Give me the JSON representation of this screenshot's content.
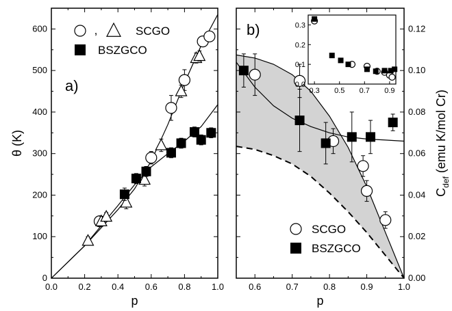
{
  "chart_data": [
    {
      "panel": "a)",
      "type": "scatter",
      "xlabel": "p",
      "ylabel": "θ (K)",
      "xlim": [
        0.0,
        1.0
      ],
      "ylim": [
        0,
        650
      ],
      "xticks": [
        "0.0",
        "0.2",
        "0.4",
        "0.6",
        "0.8",
        "1.0"
      ],
      "yticks": [
        "0",
        "100",
        "200",
        "300",
        "400",
        "500",
        "600"
      ],
      "legend": {
        "placement": "top",
        "sep": ",",
        "entries": [
          "SCGO",
          "BSZGCO"
        ]
      },
      "series": [
        {
          "name": "SCGO",
          "marker": "circle",
          "points": [
            {
              "x": 0.29,
              "y": 137,
              "err": 12
            },
            {
              "x": 0.6,
              "y": 290,
              "err": 15
            },
            {
              "x": 0.72,
              "y": 410,
              "err": 30
            },
            {
              "x": 0.8,
              "y": 477,
              "err": 25
            },
            {
              "x": 0.91,
              "y": 570,
              "err": 12
            },
            {
              "x": 0.95,
              "y": 582,
              "err": 12
            }
          ]
        },
        {
          "name": "SCGO",
          "marker": "triangle",
          "points": [
            {
              "x": 0.22,
              "y": 90,
              "err": 10
            },
            {
              "x": 0.3,
              "y": 137,
              "err": 12
            },
            {
              "x": 0.33,
              "y": 148,
              "err": 10
            },
            {
              "x": 0.45,
              "y": 182,
              "err": 15
            },
            {
              "x": 0.56,
              "y": 237,
              "err": 15
            },
            {
              "x": 0.66,
              "y": 320,
              "err": 15
            },
            {
              "x": 0.78,
              "y": 450,
              "err": 15
            },
            {
              "x": 0.87,
              "y": 530,
              "err": 12
            },
            {
              "x": 0.89,
              "y": 535,
              "err": 12
            }
          ]
        },
        {
          "name": "BSZGCO",
          "marker": "square",
          "points": [
            {
              "x": 0.44,
              "y": 202,
              "err": 15
            },
            {
              "x": 0.51,
              "y": 240,
              "err": 12
            },
            {
              "x": 0.57,
              "y": 257,
              "err": 12
            },
            {
              "x": 0.72,
              "y": 302,
              "err": 12
            },
            {
              "x": 0.78,
              "y": 325,
              "err": 12
            },
            {
              "x": 0.86,
              "y": 352,
              "err": 12
            },
            {
              "x": 0.9,
              "y": 333,
              "err": 12
            },
            {
              "x": 0.96,
              "y": 350,
              "err": 12
            }
          ]
        }
      ],
      "fits": [
        {
          "points": [
            [
              0,
              0
            ],
            [
              0.2,
              78
            ],
            [
              0.4,
              165
            ],
            [
              0.5,
              215
            ],
            [
              0.6,
              282
            ],
            [
              0.7,
              370
            ],
            [
              0.8,
              470
            ],
            [
              0.9,
              560
            ],
            [
              1.0,
              635
            ]
          ]
        },
        {
          "points": [
            [
              0,
              0
            ],
            [
              0.2,
              78
            ],
            [
              0.4,
              175
            ],
            [
              0.5,
              225
            ],
            [
              0.6,
              268
            ],
            [
              0.7,
              300
            ],
            [
              0.8,
              330
            ],
            [
              0.9,
              365
            ],
            [
              1.0,
              418
            ]
          ]
        }
      ]
    },
    {
      "panel": "b)",
      "type": "scatter",
      "xlabel": "p",
      "ylabel": "C",
      "ylabel_sub": "def",
      "ylabel_rest": " (emu K/mol Cr)",
      "xlim": [
        0.55,
        1.0
      ],
      "ylim": [
        0.0,
        0.13
      ],
      "xticks": [
        "0.6",
        "0.7",
        "0.8",
        "0.9",
        "1.0"
      ],
      "yticks": [
        "0.00",
        "0.02",
        "0.04",
        "0.06",
        "0.08",
        "0.10",
        "0.12"
      ],
      "legend": {
        "placement": "lower-center",
        "entries": [
          "SCGO",
          "BSZGCO"
        ]
      },
      "series": [
        {
          "name": "SCGO",
          "marker": "circle",
          "points": [
            {
              "x": 0.6,
              "y": 0.098,
              "err": 0.01
            },
            {
              "x": 0.72,
              "y": 0.095,
              "err": 0.008
            },
            {
              "x": 0.81,
              "y": 0.066,
              "err": 0.006
            },
            {
              "x": 0.89,
              "y": 0.054,
              "err": 0.005
            },
            {
              "x": 0.9,
              "y": 0.042,
              "err": 0.005
            },
            {
              "x": 0.95,
              "y": 0.028,
              "err": 0.004
            }
          ]
        },
        {
          "name": "BSZGCO",
          "marker": "square",
          "points": [
            {
              "x": 0.57,
              "y": 0.1,
              "err": 0.008
            },
            {
              "x": 0.72,
              "y": 0.076,
              "err": 0.015
            },
            {
              "x": 0.79,
              "y": 0.065,
              "err": 0.01
            },
            {
              "x": 0.86,
              "y": 0.068,
              "err": 0.012
            },
            {
              "x": 0.91,
              "y": 0.068,
              "err": 0.008
            },
            {
              "x": 0.97,
              "y": 0.075,
              "err": 0.004
            }
          ]
        }
      ],
      "band": {
        "upper": [
          [
            0.55,
            0.1075
          ],
          [
            0.6,
            0.106
          ],
          [
            0.65,
            0.103
          ],
          [
            0.7,
            0.098
          ],
          [
            0.75,
            0.09
          ],
          [
            0.8,
            0.078
          ],
          [
            0.85,
            0.063
          ],
          [
            0.9,
            0.044
          ],
          [
            0.95,
            0.022
          ],
          [
            1.0,
            0.0
          ]
        ],
        "lower": [
          [
            0.55,
            0.0635
          ],
          [
            0.6,
            0.062
          ],
          [
            0.65,
            0.059
          ],
          [
            0.7,
            0.055
          ],
          [
            0.75,
            0.049
          ],
          [
            0.8,
            0.041
          ],
          [
            0.85,
            0.032
          ],
          [
            0.9,
            0.022
          ],
          [
            0.95,
            0.011
          ],
          [
            1.0,
            0.0
          ]
        ]
      },
      "fits": [
        {
          "points": [
            [
              0.55,
              0.104
            ],
            [
              0.6,
              0.092
            ],
            [
              0.65,
              0.083
            ],
            [
              0.7,
              0.077
            ],
            [
              0.75,
              0.073
            ],
            [
              0.8,
              0.07
            ],
            [
              0.85,
              0.068
            ],
            [
              0.9,
              0.067
            ],
            [
              0.95,
              0.0665
            ],
            [
              1.0,
              0.066
            ]
          ]
        }
      ]
    },
    {
      "panel": "b-inset",
      "type": "scatter",
      "xlim": [
        0.25,
        0.95
      ],
      "ylim": [
        0.0,
        0.35
      ],
      "xticks": [
        "0.3",
        "0.5",
        "0.7",
        "0.9"
      ],
      "yticks": [
        "0.0",
        "0.1",
        "0.2",
        "0.3"
      ],
      "series": [
        {
          "name": "SCGO",
          "marker": "circle",
          "points": [
            {
              "x": 0.3,
              "y": 0.32
            },
            {
              "x": 0.6,
              "y": 0.1
            },
            {
              "x": 0.72,
              "y": 0.09
            },
            {
              "x": 0.8,
              "y": 0.065
            },
            {
              "x": 0.86,
              "y": 0.06
            },
            {
              "x": 0.9,
              "y": 0.045
            },
            {
              "x": 0.92,
              "y": 0.035
            }
          ]
        },
        {
          "name": "BSZGCO",
          "marker": "square",
          "points": [
            {
              "x": 0.3,
              "y": 0.33
            },
            {
              "x": 0.44,
              "y": 0.145
            },
            {
              "x": 0.51,
              "y": 0.12
            },
            {
              "x": 0.57,
              "y": 0.1
            },
            {
              "x": 0.72,
              "y": 0.075
            },
            {
              "x": 0.79,
              "y": 0.065
            },
            {
              "x": 0.86,
              "y": 0.068
            },
            {
              "x": 0.91,
              "y": 0.068
            },
            {
              "x": 0.94,
              "y": 0.075
            }
          ]
        }
      ]
    }
  ]
}
